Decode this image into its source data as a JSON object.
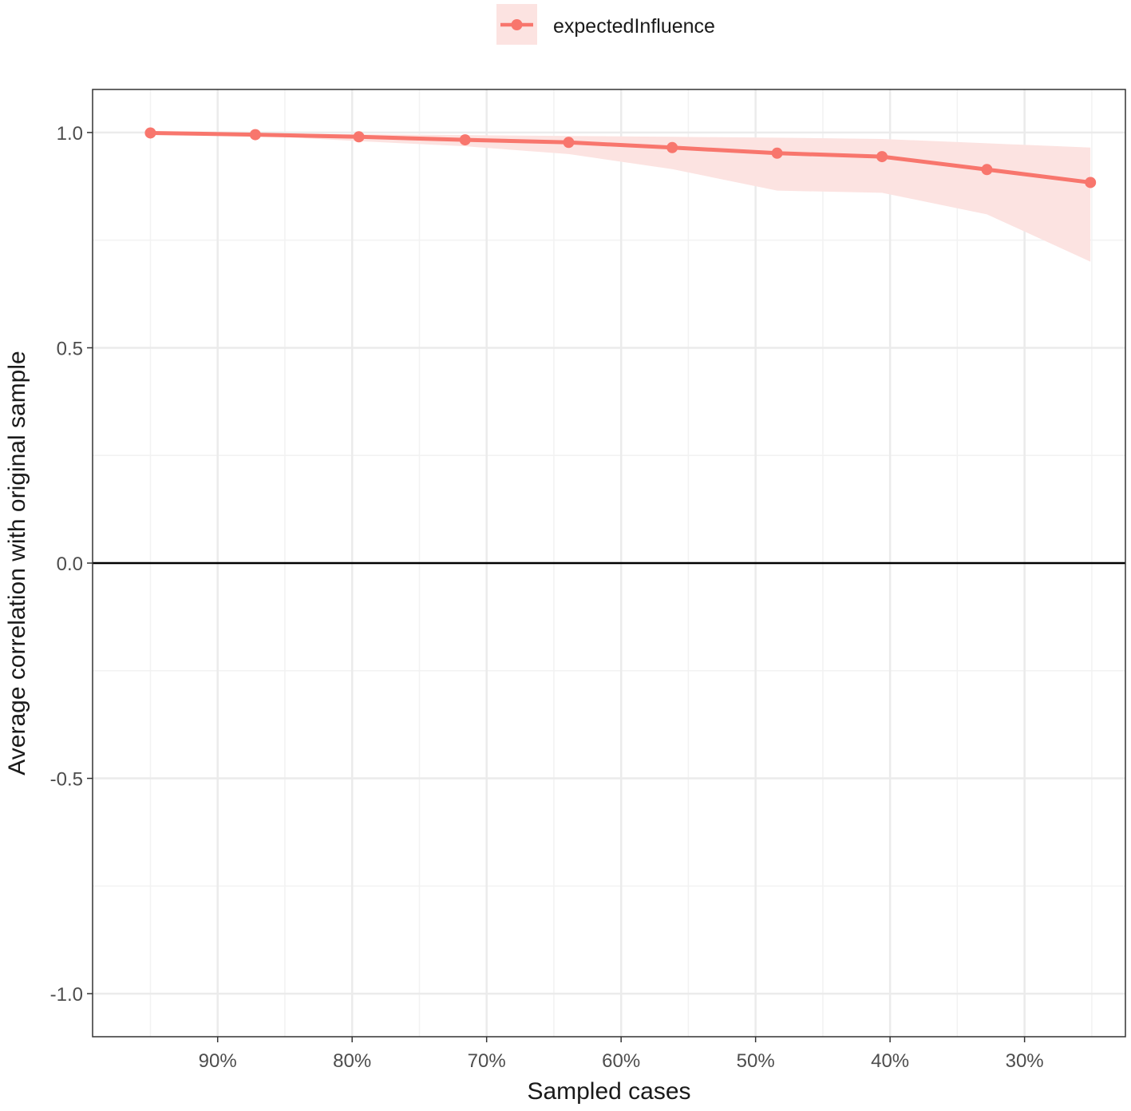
{
  "chart_data": {
    "type": "line",
    "xlabel": "Sampled cases",
    "ylabel": "Average correlation with original sample",
    "x_reversed": true,
    "xlim": [
      22.5,
      99.3
    ],
    "ylim": [
      -1.1,
      1.1
    ],
    "x_ticks": [
      {
        "value": 90,
        "label": "90%"
      },
      {
        "value": 80,
        "label": "80%"
      },
      {
        "value": 70,
        "label": "70%"
      },
      {
        "value": 60,
        "label": "60%"
      },
      {
        "value": 50,
        "label": "50%"
      },
      {
        "value": 40,
        "label": "40%"
      },
      {
        "value": 30,
        "label": "30%"
      }
    ],
    "y_ticks": [
      {
        "value": 1.0,
        "label": "1.0"
      },
      {
        "value": 0.5,
        "label": "0.5"
      },
      {
        "value": 0.0,
        "label": "0.0"
      },
      {
        "value": -0.5,
        "label": "-0.5"
      },
      {
        "value": -1.0,
        "label": "-1.0"
      }
    ],
    "hline": 0,
    "legend_position": "top",
    "grid": true,
    "series": [
      {
        "name": "expectedInfluence",
        "color": "#F8766D",
        "ribbon_color": "#FCE3E1",
        "x": [
          95.0,
          87.2,
          79.5,
          71.6,
          63.9,
          56.2,
          48.4,
          40.6,
          32.8,
          25.1
        ],
        "values": [
          0.999,
          0.995,
          0.99,
          0.983,
          0.977,
          0.965,
          0.952,
          0.944,
          0.914,
          0.884
        ],
        "lower": [
          0.999,
          0.993,
          0.98,
          0.968,
          0.95,
          0.915,
          0.865,
          0.86,
          0.81,
          0.7
        ],
        "upper": [
          1.0,
          0.998,
          0.996,
          0.994,
          0.992,
          0.99,
          0.988,
          0.985,
          0.975,
          0.965
        ]
      }
    ]
  }
}
